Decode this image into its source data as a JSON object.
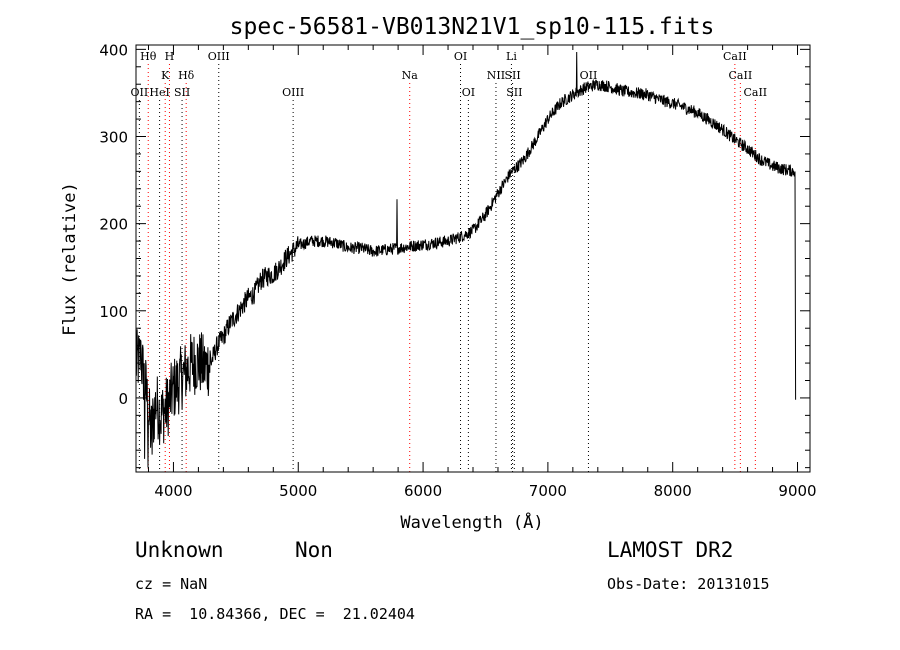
{
  "chart_data": {
    "type": "line",
    "title": "spec-56581-VB013N21V1_sp10-115.fits",
    "xlabel": "Wavelength (Å)",
    "ylabel": "Flux (relative)",
    "xlim": [
      3700,
      9100
    ],
    "ylim": [
      -85,
      405
    ],
    "x_ticks": [
      4000,
      5000,
      6000,
      7000,
      8000,
      9000
    ],
    "y_ticks": [
      0,
      100,
      200,
      300,
      400
    ],
    "grid": false,
    "line_color": "#000000",
    "marker_color": "#ff0000",
    "spectrum_anchors": [
      [
        3700,
        40
      ],
      [
        3740,
        45
      ],
      [
        3780,
        10
      ],
      [
        3820,
        -40
      ],
      [
        3860,
        -5
      ],
      [
        3900,
        -20
      ],
      [
        3950,
        -10
      ],
      [
        4000,
        10
      ],
      [
        4050,
        20
      ],
      [
        4100,
        30
      ],
      [
        4150,
        40
      ],
      [
        4200,
        42
      ],
      [
        4250,
        35
      ],
      [
        4300,
        40
      ],
      [
        4350,
        60
      ],
      [
        4400,
        70
      ],
      [
        4450,
        85
      ],
      [
        4500,
        95
      ],
      [
        4550,
        105
      ],
      [
        4600,
        115
      ],
      [
        4650,
        120
      ],
      [
        4700,
        135
      ],
      [
        4750,
        140
      ],
      [
        4800,
        142
      ],
      [
        4850,
        150
      ],
      [
        4900,
        160
      ],
      [
        5000,
        175
      ],
      [
        5100,
        180
      ],
      [
        5200,
        180
      ],
      [
        5300,
        178
      ],
      [
        5400,
        172
      ],
      [
        5500,
        172
      ],
      [
        5600,
        168
      ],
      [
        5700,
        170
      ],
      [
        5800,
        172
      ],
      [
        5900,
        174
      ],
      [
        6000,
        176
      ],
      [
        6100,
        178
      ],
      [
        6200,
        180
      ],
      [
        6300,
        185
      ],
      [
        6400,
        192
      ],
      [
        6500,
        210
      ],
      [
        6600,
        235
      ],
      [
        6700,
        258
      ],
      [
        6800,
        272
      ],
      [
        6900,
        295
      ],
      [
        7000,
        320
      ],
      [
        7100,
        338
      ],
      [
        7200,
        348
      ],
      [
        7300,
        356
      ],
      [
        7400,
        360
      ],
      [
        7500,
        357
      ],
      [
        7600,
        352
      ],
      [
        7700,
        350
      ],
      [
        7800,
        348
      ],
      [
        7900,
        342
      ],
      [
        8000,
        338
      ],
      [
        8100,
        333
      ],
      [
        8200,
        327
      ],
      [
        8300,
        318
      ],
      [
        8400,
        308
      ],
      [
        8500,
        296
      ],
      [
        8600,
        286
      ],
      [
        8700,
        274
      ],
      [
        8800,
        266
      ],
      [
        8900,
        262
      ],
      [
        8980,
        260
      ]
    ],
    "spikes": [
      [
        3740,
        65
      ],
      [
        3770,
        -70
      ],
      [
        3795,
        -80
      ],
      [
        3830,
        -65
      ],
      [
        7230,
        397
      ],
      [
        5790,
        228
      ],
      [
        6450,
        208
      ]
    ],
    "lines": [
      {
        "label": "Hθ",
        "x": 3798,
        "row": 0,
        "color": "#ff0000"
      },
      {
        "label": "H",
        "x": 3968,
        "row": 0,
        "color": "#ff0000"
      },
      {
        "label": "OIII",
        "x": 4363,
        "row": 0,
        "color": "#000000"
      },
      {
        "label": "OI",
        "x": 6300,
        "row": 0,
        "color": "#000000"
      },
      {
        "label": "Li",
        "x": 6708,
        "row": 0,
        "color": "#000000"
      },
      {
        "label": "CaII",
        "x": 8498,
        "row": 0,
        "color": "#ff0000"
      },
      {
        "label": "K",
        "x": 3934,
        "row": 1,
        "color": "#ff0000"
      },
      {
        "label": "Hδ",
        "x": 4102,
        "row": 1,
        "color": "#ff0000"
      },
      {
        "label": "Na",
        "x": 5893,
        "row": 1,
        "color": "#ff0000"
      },
      {
        "label": "NII",
        "x": 6584,
        "row": 1,
        "color": "#000000"
      },
      {
        "label": "SII",
        "x": 6717,
        "row": 1,
        "color": "#000000"
      },
      {
        "label": "OII",
        "x": 7325,
        "row": 1,
        "color": "#000000"
      },
      {
        "label": "CaII",
        "x": 8542,
        "row": 1,
        "color": "#ff0000"
      },
      {
        "label": "OII",
        "x": 3727,
        "row": 2,
        "color": "#000000"
      },
      {
        "label": "HeI",
        "x": 3889,
        "row": 2,
        "color": "#000000"
      },
      {
        "label": "SII",
        "x": 4069,
        "row": 2,
        "color": "#000000"
      },
      {
        "label": "OIII",
        "x": 4959,
        "row": 2,
        "color": "#000000"
      },
      {
        "label": "OI",
        "x": 6363,
        "row": 2,
        "color": "#000000"
      },
      {
        "label": "SII",
        "x": 6731,
        "row": 2,
        "color": "#000000"
      },
      {
        "label": "CaII",
        "x": 8662,
        "row": 2,
        "color": "#ff0000"
      }
    ]
  },
  "info": {
    "class": "Unknown",
    "subclass": "Non",
    "survey": "LAMOST DR2",
    "cz": "cz = NaN",
    "obs_date": "Obs-Date: 20131015",
    "coords": "RA =  10.84366, DEC =  21.02404"
  }
}
